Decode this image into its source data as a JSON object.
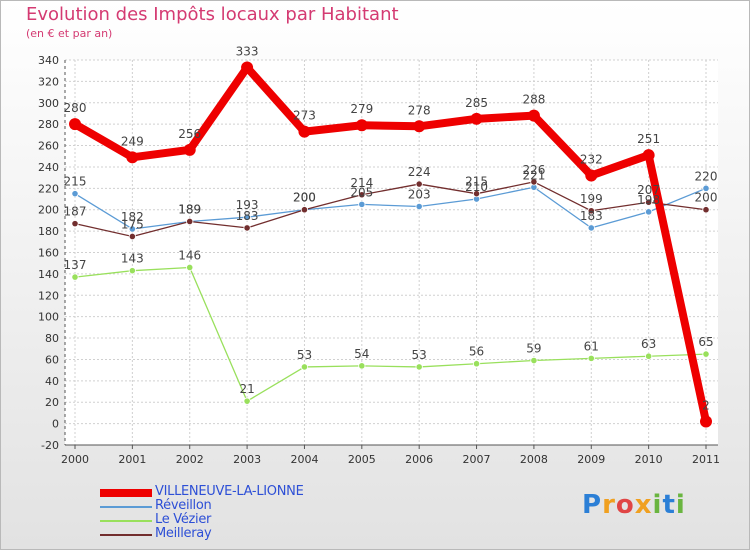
{
  "title": "Evolution des Impôts locaux par Habitant",
  "subtitle": "(en € et par an)",
  "logo": {
    "text": "Proxiti",
    "letters": [
      "P",
      "r",
      "o",
      "x",
      "i",
      "t",
      "i"
    ],
    "colors": [
      "#2b7fd6",
      "#f0a020",
      "#e04545",
      "#f0a020",
      "#6ab540",
      "#2b7fd6",
      "#6ab540"
    ]
  },
  "chart_data": {
    "type": "line",
    "title": "Evolution des Impôts locaux par Habitant",
    "subtitle": "(en € et par an)",
    "x": [
      "2000",
      "2001",
      "2002",
      "2003",
      "2004",
      "2005",
      "2006",
      "2007",
      "2008",
      "2009",
      "2010",
      "2011"
    ],
    "ylim": [
      -20,
      340
    ],
    "yticks": [
      -20,
      0,
      20,
      40,
      60,
      80,
      100,
      120,
      140,
      160,
      180,
      200,
      220,
      240,
      260,
      280,
      300,
      320,
      340
    ],
    "grid": true,
    "legend_position": "bottom-left",
    "series": [
      {
        "name": "Réveillon",
        "color": "#5b9bd5",
        "values": [
          215,
          182,
          189,
          193,
          200,
          205,
          203,
          210,
          221,
          183,
          198,
          220
        ],
        "labels": [
          "215",
          "182",
          "189",
          "193",
          "200",
          "205",
          "203",
          "210",
          "221",
          "183",
          "198",
          "220"
        ]
      },
      {
        "name": "Meilleray",
        "color": "#722e2e",
        "values": [
          187,
          175,
          189,
          183,
          200,
          214,
          224,
          215,
          226,
          199,
          207,
          200
        ],
        "labels": [
          "187",
          "175",
          "189",
          "183",
          "200",
          "214",
          "224",
          "215",
          "226",
          "199",
          "207",
          "200"
        ]
      },
      {
        "name": "Le Vézier",
        "color": "#99e05c",
        "values": [
          137,
          143,
          146,
          21,
          53,
          54,
          53,
          56,
          59,
          61,
          63,
          65
        ],
        "labels": [
          "137",
          "143",
          "146",
          "21",
          "53",
          "54",
          "53",
          "56",
          "59",
          "61",
          "63",
          "65"
        ]
      },
      {
        "name": "VILLENEUVE-LA-LIONNE",
        "color": "#ee0000",
        "values": [
          280,
          249,
          256,
          333,
          273,
          279,
          278,
          285,
          288,
          232,
          251,
          2
        ],
        "labels": [
          "280",
          "249",
          "256",
          "333",
          "273",
          "279",
          "278",
          "285",
          "288",
          "232",
          "251",
          "2"
        ]
      }
    ],
    "legend": [
      {
        "name": "VILLENEUVE-LA-LIONNE",
        "color": "#ee0000",
        "thick": true
      },
      {
        "name": "Réveillon",
        "color": "#5b9bd5",
        "thick": false
      },
      {
        "name": "Le Vézier",
        "color": "#99e05c",
        "thick": false
      },
      {
        "name": "Meilleray",
        "color": "#722e2e",
        "thick": false
      }
    ]
  }
}
